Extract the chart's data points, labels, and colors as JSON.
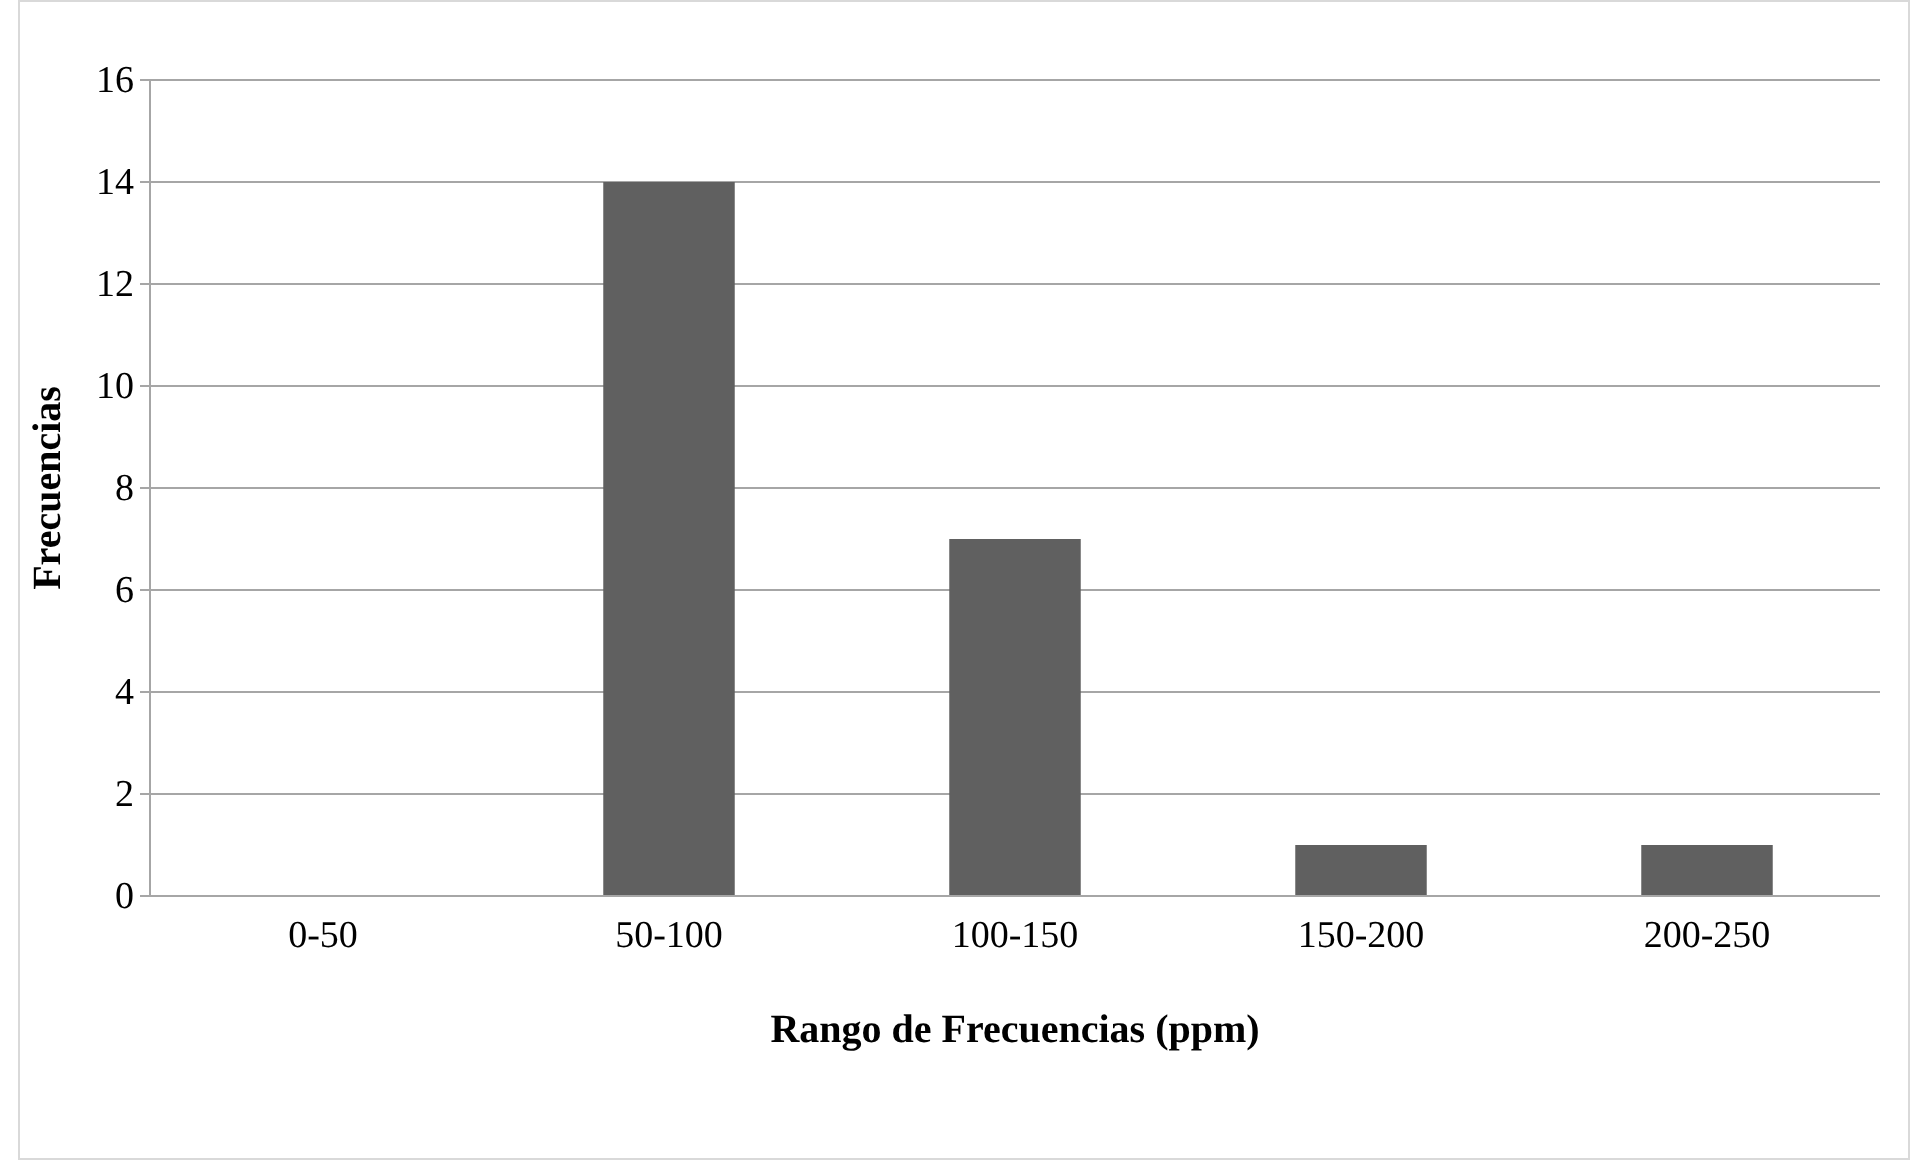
{
  "chart_data": {
    "type": "bar",
    "xlabel": "Rango de Frecuencias (ppm)",
    "ylabel": "Frecuencias",
    "categories": [
      "0-50",
      "50-100",
      "100-150",
      "150-200",
      "200-250"
    ],
    "values": [
      0,
      14,
      7,
      1,
      1
    ],
    "color": "#606060",
    "ylim": [
      0,
      16
    ],
    "yticks": [
      0,
      2,
      4,
      6,
      8,
      10,
      12,
      14,
      16
    ],
    "grid": "y"
  }
}
